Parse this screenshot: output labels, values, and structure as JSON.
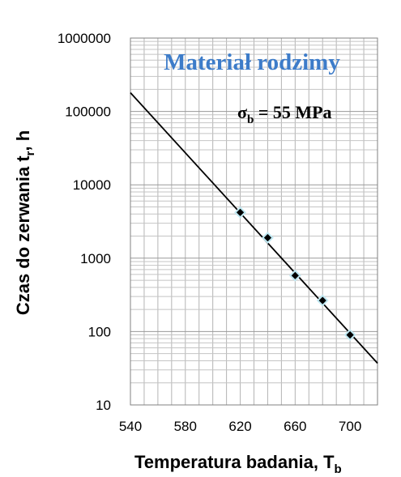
{
  "chart_data": {
    "type": "scatter",
    "title": "Materiał rodzimy",
    "annotation": {
      "prefix": "σ",
      "subscript": "b",
      "suffix": " = 55 MPa"
    },
    "xlabel": {
      "main": "Temperatura badania, T",
      "subscript": "b"
    },
    "ylabel": {
      "main": "Czas do zerwania t",
      "subscript": "r",
      "suffix": ", h"
    },
    "xlim": [
      540,
      720
    ],
    "ylim": [
      10,
      1000000
    ],
    "y_scale": "log",
    "x_ticks": [
      540,
      580,
      620,
      660,
      700
    ],
    "y_ticks": [
      10,
      100,
      1000,
      10000,
      100000,
      1000000
    ],
    "y_tick_labels": [
      "10",
      "100",
      "1000",
      "10000",
      "100000",
      "1000000"
    ],
    "grid": true,
    "series": [
      {
        "points": [
          {
            "x": 620,
            "y": 4200
          },
          {
            "x": 640,
            "y": 1900
          },
          {
            "x": 660,
            "y": 580
          },
          {
            "x": 680,
            "y": 265
          },
          {
            "x": 700,
            "y": 90
          }
        ],
        "marker": "diamond",
        "color": "#000000"
      }
    ],
    "trendline": {
      "from": {
        "x": 540,
        "y": 180000
      },
      "to": {
        "x": 720,
        "y": 37
      },
      "color": "#000000"
    }
  }
}
